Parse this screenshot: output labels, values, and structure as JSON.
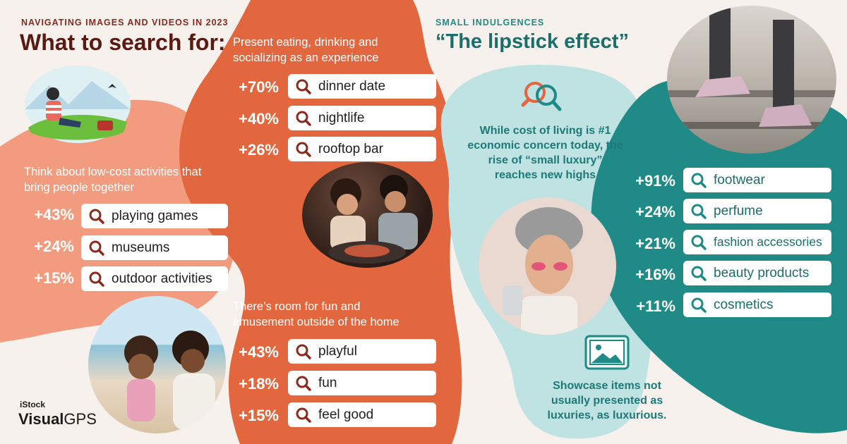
{
  "header": {
    "kicker": "NAVIGATING IMAGES AND VIDEOS IN 2023",
    "title": "What to search for:"
  },
  "sections": {
    "low_cost": {
      "text": "Think about low-cost activities that bring people together",
      "items": [
        {
          "pct": "+43%",
          "term": "playing games"
        },
        {
          "pct": "+24%",
          "term": "museums"
        },
        {
          "pct": "+15%",
          "term": "outdoor activities"
        }
      ]
    },
    "experience": {
      "text": "Present eating, drinking and socializing as an experience",
      "items": [
        {
          "pct": "+70%",
          "term": "dinner date"
        },
        {
          "pct": "+40%",
          "term": "nightlife"
        },
        {
          "pct": "+26%",
          "term": "rooftop bar"
        }
      ]
    },
    "fun": {
      "text": "There’s room for fun and amusement outside of the home",
      "items": [
        {
          "pct": "+43%",
          "term": "playful"
        },
        {
          "pct": "+18%",
          "term": "fun"
        },
        {
          "pct": "+15%",
          "term": "feel good"
        }
      ]
    },
    "lipstick": {
      "kicker": "SMALL INDULGENCES",
      "title": "“The lipstick effect”",
      "text": "While cost of living is #1 economic concern today, the rise of “small luxury” reaches new highs",
      "items": [
        {
          "pct": "+91%",
          "term": "footwear"
        },
        {
          "pct": "+24%",
          "term": "perfume"
        },
        {
          "pct": "+21%",
          "term": "fashion accessories"
        },
        {
          "pct": "+16%",
          "term": "beauty products"
        },
        {
          "pct": "+11%",
          "term": "cosmetics"
        }
      ],
      "tip": "Showcase items not usually presented as luxuries, as luxurious."
    }
  },
  "brand": {
    "top": "iStock",
    "main": "Visual",
    "sub": "GPS"
  },
  "colors": {
    "maroon": "#6b1c13",
    "coral": "#f29b7f",
    "orange": "#e2673f",
    "teal": "#1f8a86",
    "light_teal": "#bfe2e3",
    "teal_text": "#1e7a78"
  },
  "icons": [
    "search-icon",
    "compare-search-icon",
    "image-icon"
  ]
}
